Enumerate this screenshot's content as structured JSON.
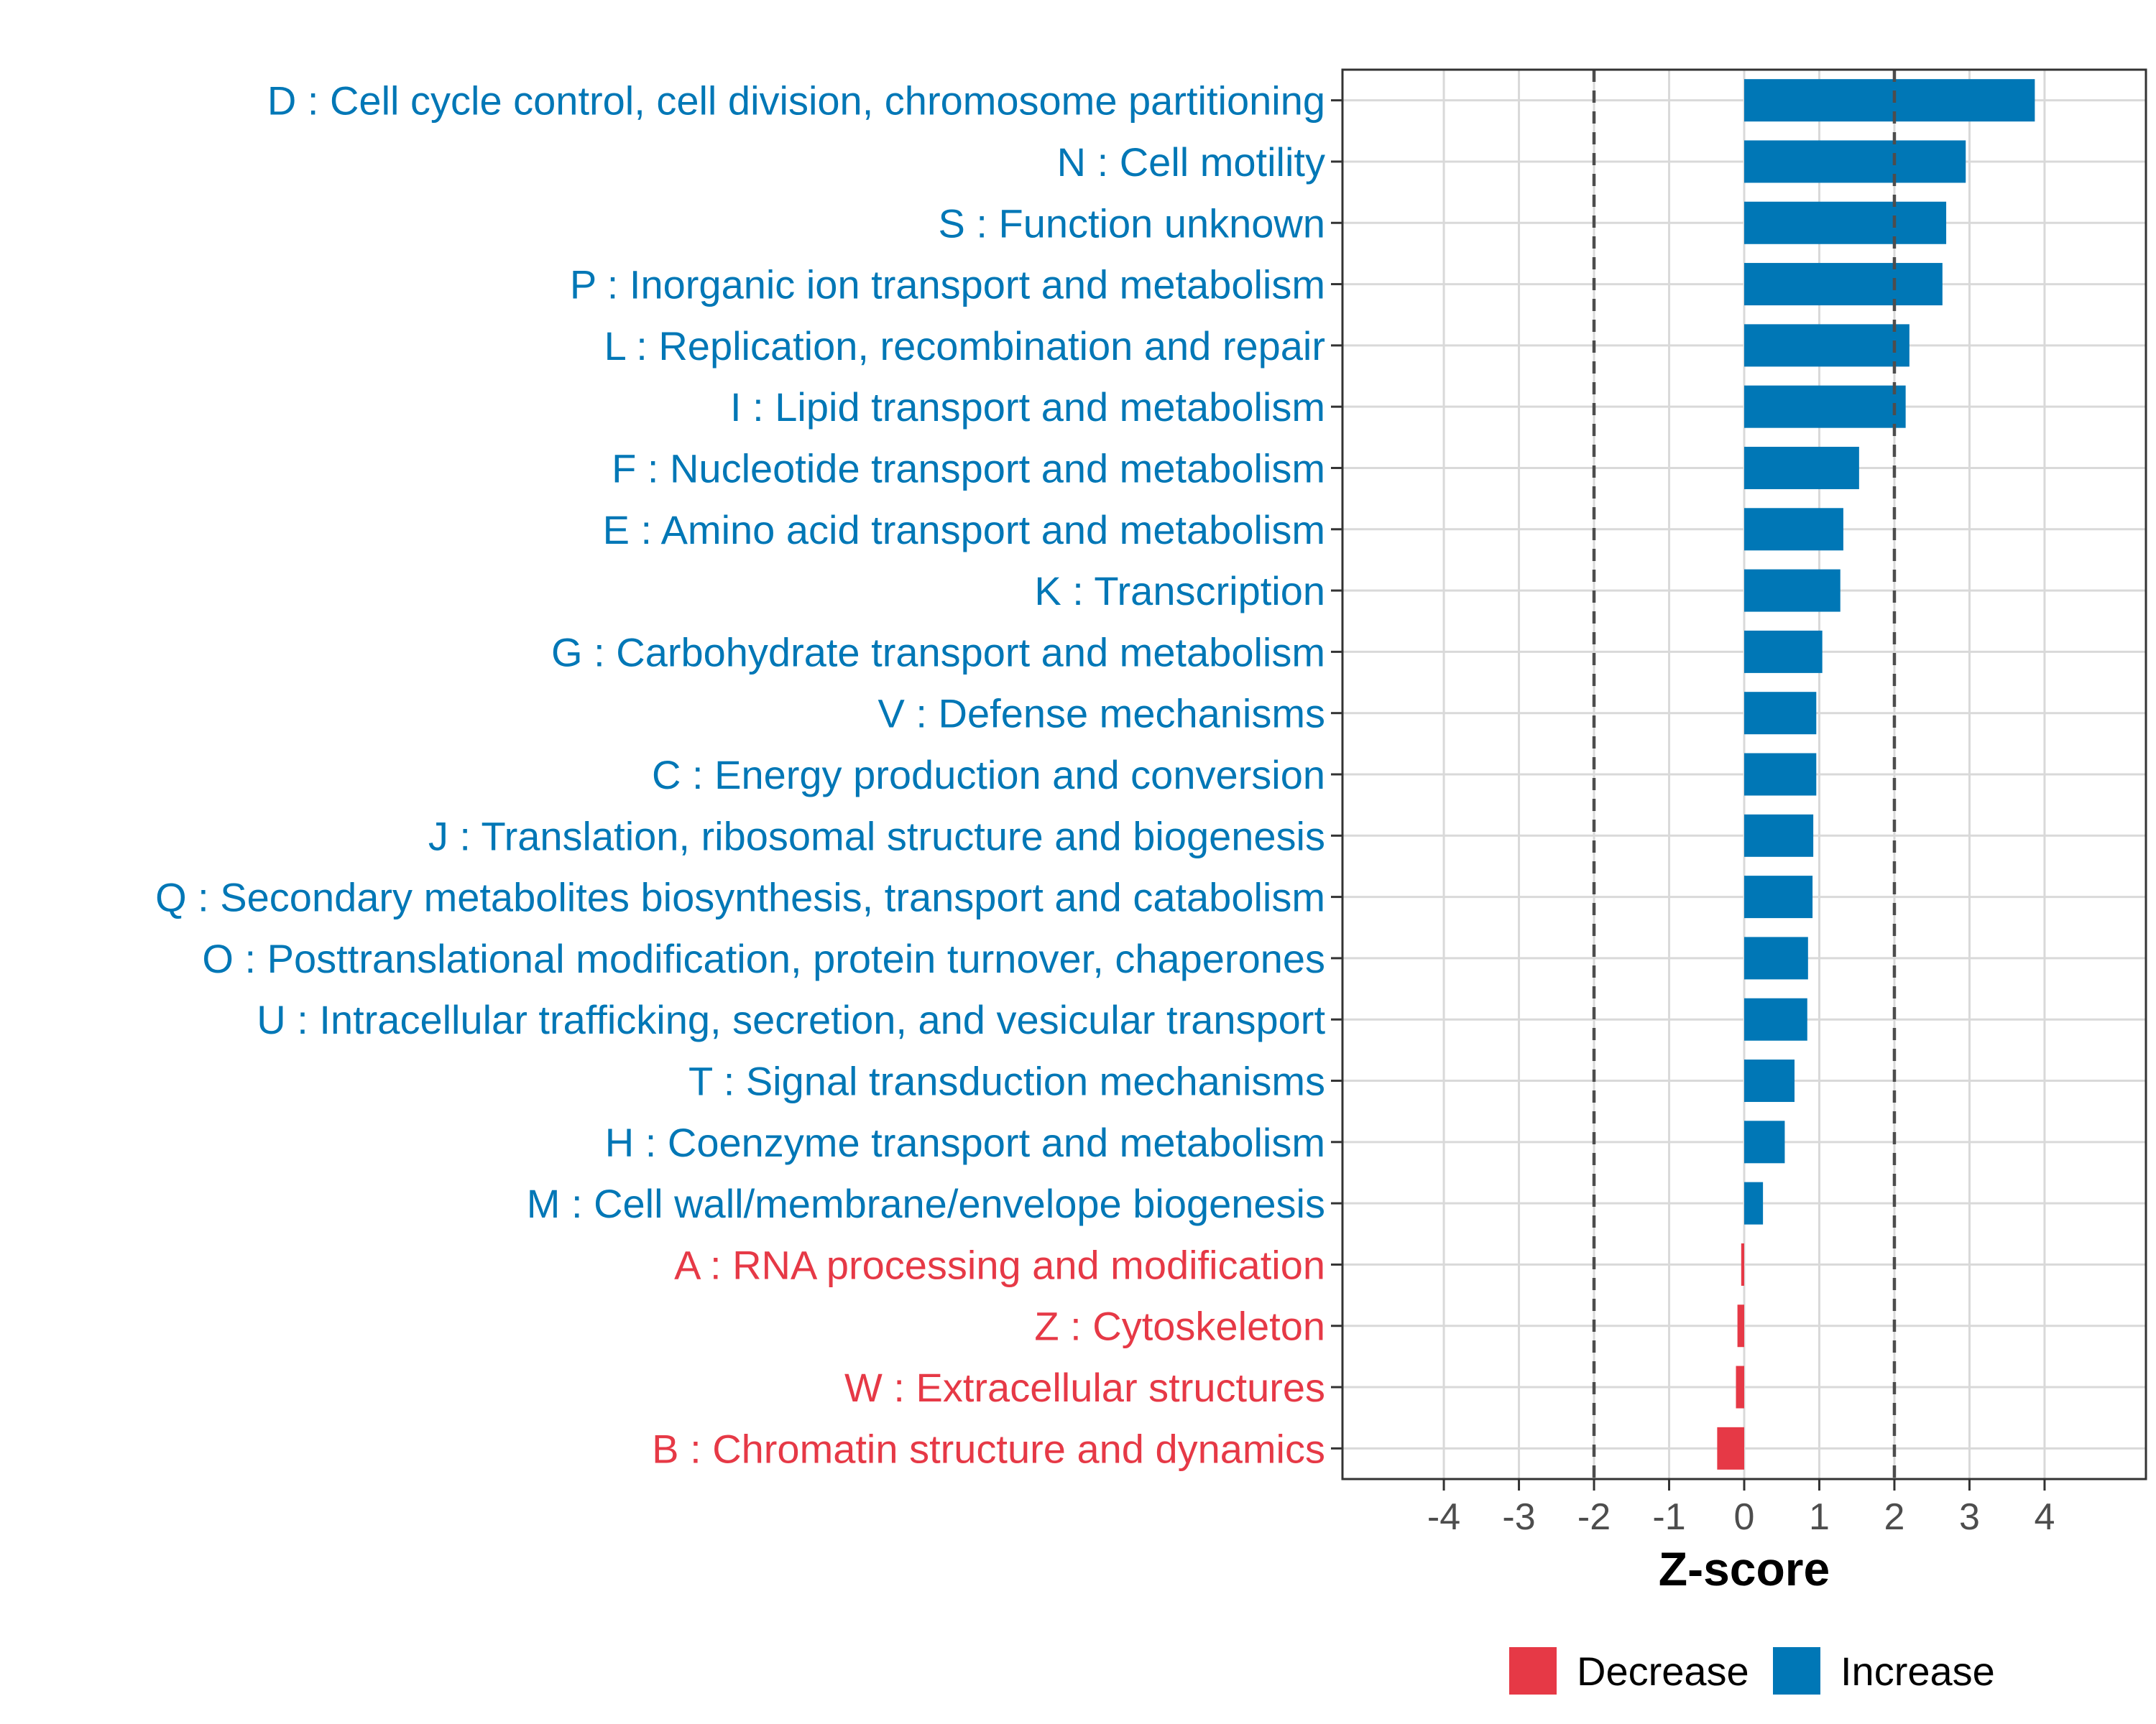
{
  "colors": {
    "increase": "#0077B6",
    "decrease": "#E63946",
    "grid": "#D9D9D9",
    "panel_border": "#333333",
    "threshold_line": "#4D4D4D"
  },
  "chart_data": {
    "type": "bar",
    "orientation": "horizontal",
    "xlabel": "Z-score",
    "ylabel": "",
    "xlim": [
      -5.35,
      5.35
    ],
    "x_ticks": [
      -4,
      -3,
      -2,
      -1,
      0,
      1,
      2,
      3,
      4
    ],
    "x_tick_labels": [
      "-4",
      "-3",
      "-2",
      "-1",
      "0",
      "1",
      "2",
      "3",
      "4"
    ],
    "threshold_lines": [
      -2,
      2
    ],
    "categories": [
      "D : Cell cycle control, cell division, chromosome partitioning",
      "N : Cell motility",
      "S : Function unknown",
      "P : Inorganic ion transport and metabolism",
      "L : Replication, recombination and repair",
      "I : Lipid transport and metabolism",
      "F : Nucleotide transport and metabolism",
      "E : Amino acid transport and metabolism",
      "K : Transcription",
      "G : Carbohydrate transport and metabolism",
      "V : Defense mechanisms",
      "C : Energy production and conversion",
      "J : Translation, ribosomal structure and biogenesis",
      "Q : Secondary metabolites biosynthesis, transport and catabolism",
      "O : Posttranslational modification, protein turnover, chaperones",
      "U : Intracellular trafficking, secretion, and vesicular transport",
      "T : Signal transduction mechanisms",
      "H : Coenzyme transport and metabolism",
      "M : Cell wall/membrane/envelope biogenesis",
      "A : RNA processing and modification",
      "Z : Cytoskeleton",
      "W : Extracellular structures",
      "B : Chromatin structure and dynamics"
    ],
    "values": [
      3.87,
      2.95,
      2.69,
      2.64,
      2.2,
      2.15,
      1.53,
      1.32,
      1.28,
      1.04,
      0.96,
      0.96,
      0.92,
      0.91,
      0.85,
      0.84,
      0.67,
      0.54,
      0.25,
      -0.04,
      -0.09,
      -0.11,
      -0.36
    ],
    "direction": [
      "Increase",
      "Increase",
      "Increase",
      "Increase",
      "Increase",
      "Increase",
      "Increase",
      "Increase",
      "Increase",
      "Increase",
      "Increase",
      "Increase",
      "Increase",
      "Increase",
      "Increase",
      "Increase",
      "Increase",
      "Increase",
      "Increase",
      "Decrease",
      "Decrease",
      "Decrease",
      "Decrease"
    ],
    "legend": {
      "position": "bottom",
      "entries": [
        {
          "label": "Decrease",
          "key": "decrease"
        },
        {
          "label": "Increase",
          "key": "increase"
        }
      ]
    }
  }
}
